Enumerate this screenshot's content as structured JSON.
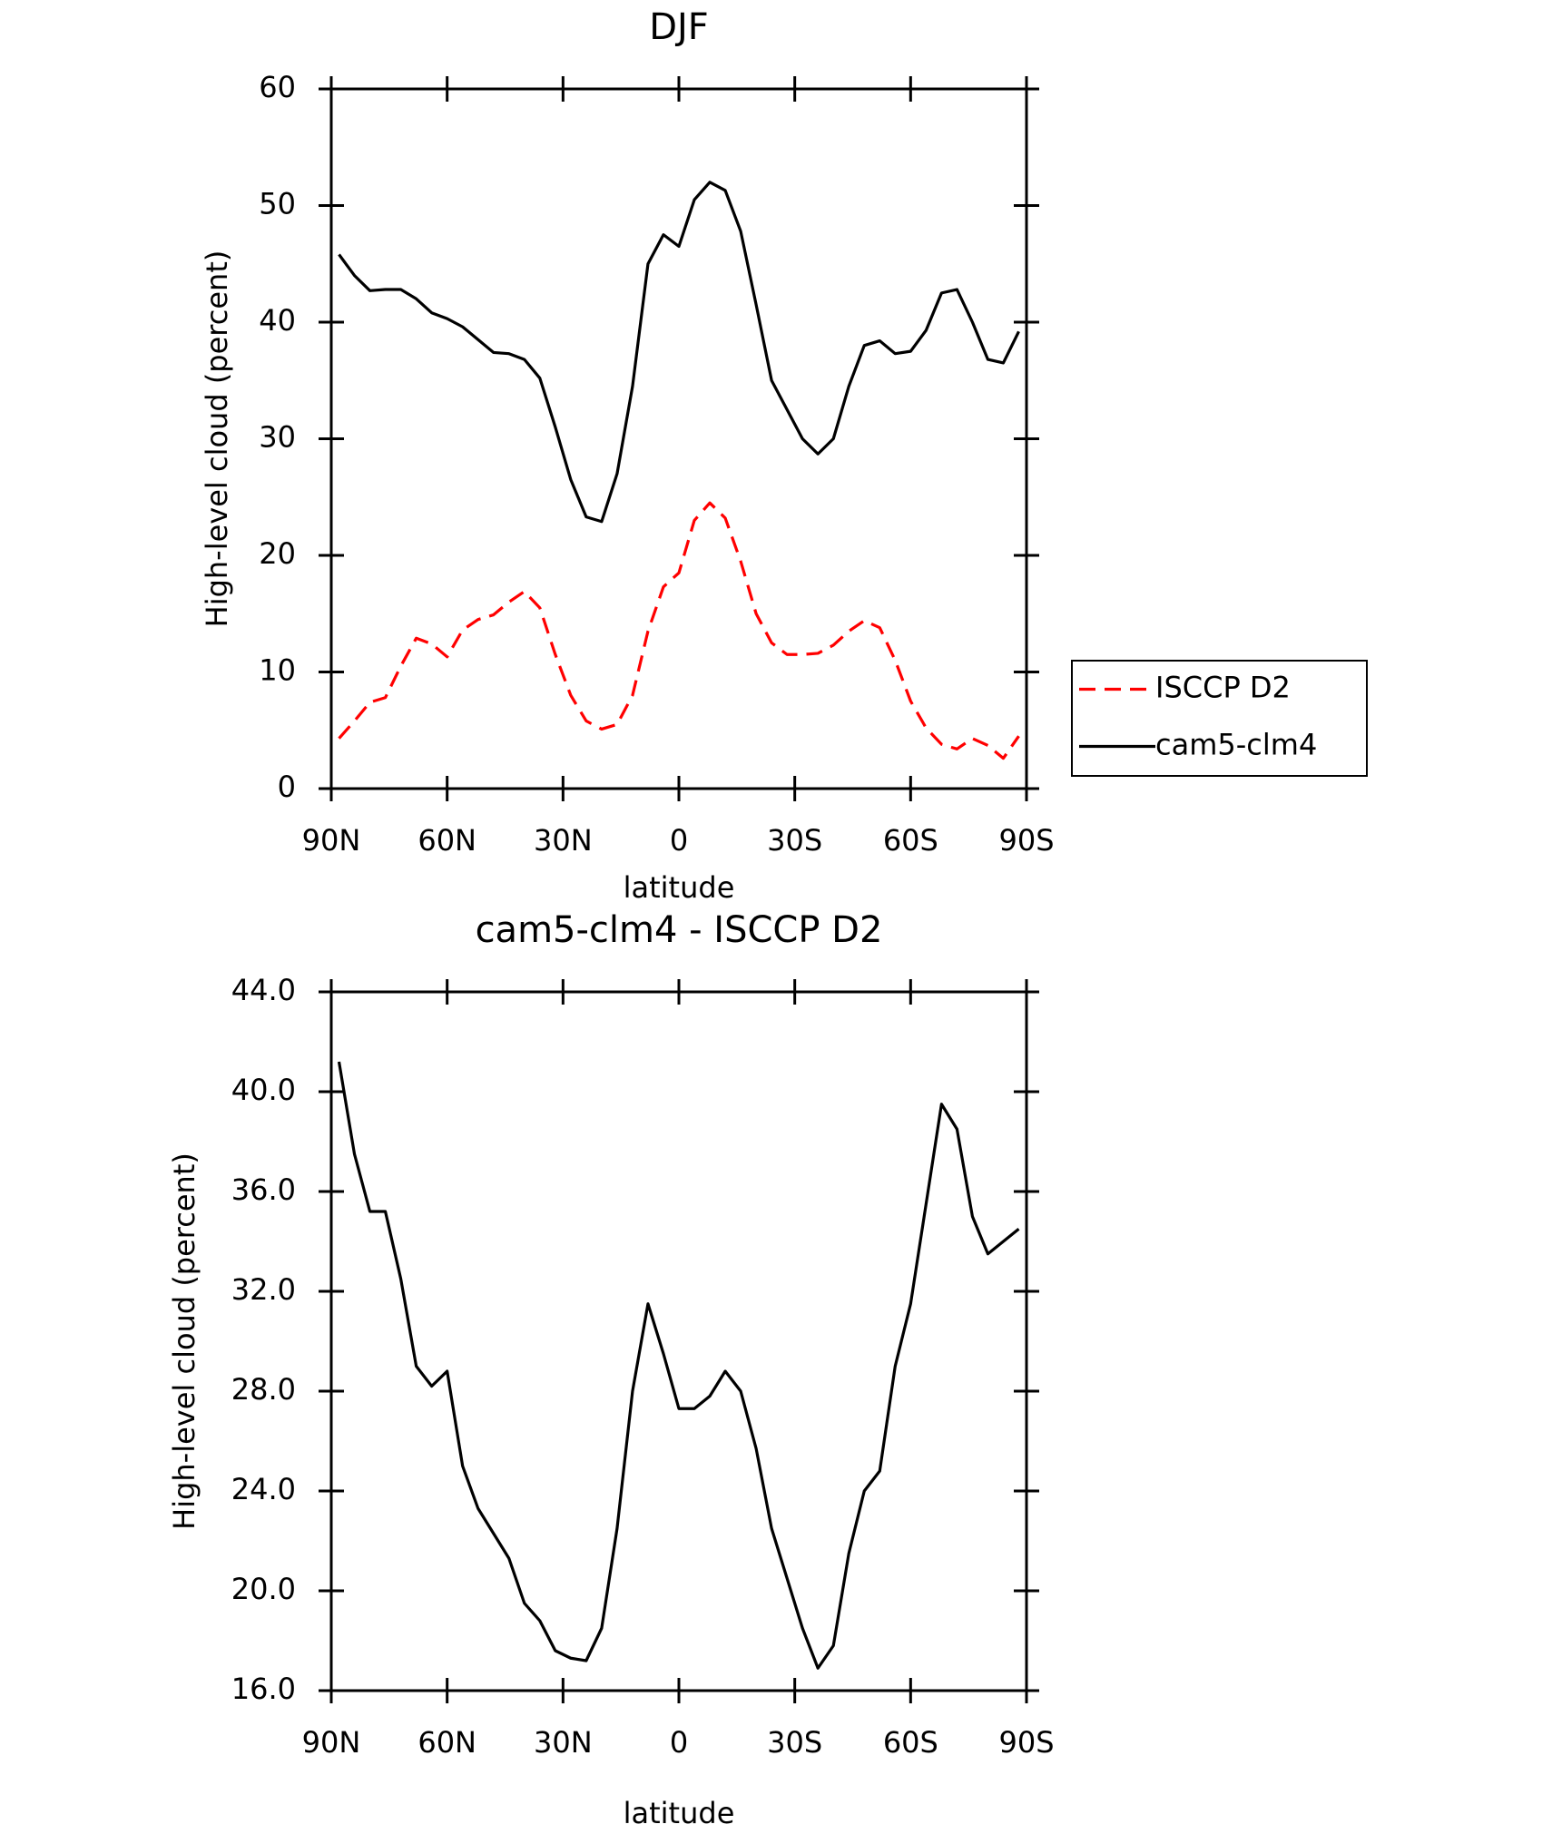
{
  "chart_data": [
    {
      "type": "line",
      "title": "DJF",
      "x_label": "latitude",
      "y_label": "High-level cloud (percent)",
      "x": [
        88,
        84,
        80,
        76,
        72,
        68,
        64,
        60,
        56,
        52,
        48,
        44,
        40,
        36,
        32,
        28,
        24,
        20,
        16,
        12,
        8,
        4,
        0,
        -4,
        -8,
        -12,
        -16,
        -20,
        -24,
        -28,
        -32,
        -36,
        -40,
        -44,
        -48,
        -52,
        -56,
        -60,
        -64,
        -68,
        -72,
        -76,
        -80,
        -84,
        -88
      ],
      "series": [
        {
          "name": "ISCCP D2",
          "color": "#ff0000",
          "dashed": true,
          "values": [
            4.3,
            5.8,
            7.4,
            7.8,
            10.5,
            12.9,
            12.4,
            11.3,
            13.6,
            14.5,
            14.9,
            16,
            16.9,
            15.5,
            11.5,
            8,
            5.8,
            5.1,
            5.5,
            8,
            13.5,
            17.3,
            18.5,
            23,
            24.5,
            23.2,
            19.5,
            15,
            12.5,
            11.5,
            11.5,
            11.6,
            12.3,
            13.5,
            14.4,
            13.8,
            11,
            7.5,
            5.2,
            3.8,
            3.4,
            4.3,
            3.7,
            2.6,
            4.5
          ]
        },
        {
          "name": "cam5-clm4",
          "color": "#000000",
          "dashed": false,
          "values": [
            45.8,
            44,
            42.7,
            42.8,
            42.8,
            42,
            40.8,
            40.3,
            39.6,
            38.5,
            37.4,
            37.3,
            36.8,
            35.2,
            31,
            26.5,
            23.3,
            22.9,
            27,
            34.5,
            45,
            47.5,
            46.5,
            50.5,
            52,
            51.3,
            47.8,
            41.5,
            35,
            32.5,
            30,
            28.7,
            30,
            34.5,
            38,
            38.4,
            37.3,
            37.5,
            39.3,
            42.5,
            42.8,
            40,
            36.8,
            36.5,
            39.2
          ]
        }
      ],
      "xlim": [
        90,
        -90
      ],
      "xticks": [
        {
          "value": 90,
          "label": "90N"
        },
        {
          "value": 60,
          "label": "60N"
        },
        {
          "value": 30,
          "label": "30N"
        },
        0,
        {
          "value": -30,
          "label": "30S"
        },
        {
          "value": -60,
          "label": "60S"
        },
        {
          "value": -90,
          "label": "90S"
        }
      ],
      "ylim": [
        0,
        60
      ],
      "yticks": [
        0,
        10,
        20,
        30,
        40,
        50,
        60
      ],
      "legend": "right"
    },
    {
      "type": "line",
      "title": "cam5-clm4 - ISCCP D2",
      "x_label": "latitude",
      "y_label": "High-level cloud (percent)",
      "x": [
        88,
        84,
        80,
        76,
        72,
        68,
        64,
        60,
        56,
        52,
        48,
        44,
        40,
        36,
        32,
        28,
        24,
        20,
        16,
        12,
        8,
        4,
        0,
        -4,
        -8,
        -12,
        -16,
        -20,
        -24,
        -28,
        -32,
        -36,
        -40,
        -44,
        -48,
        -52,
        -56,
        -60,
        -64,
        -68,
        -72,
        -76,
        -80,
        -84,
        -88
      ],
      "series": [
        {
          "color": "#000000",
          "dashed": false,
          "values": [
            41.2,
            37.5,
            35.2,
            35.2,
            32.5,
            29,
            28.2,
            28.8,
            25,
            23.3,
            22.3,
            21.3,
            19.5,
            18.8,
            17.6,
            17.3,
            17.2,
            18.5,
            22.5,
            28,
            31.5,
            29.5,
            27.3,
            27.3,
            27.8,
            28.8,
            28,
            25.7,
            22.5,
            20.5,
            18.5,
            16.9,
            17.8,
            21.5,
            24,
            24.8,
            29,
            31.5,
            35.5,
            39.5,
            38.5,
            35,
            33.5,
            34,
            34.5
          ]
        }
      ],
      "xlim": [
        90,
        -90
      ],
      "xticks": [
        {
          "value": 90,
          "label": "90N"
        },
        {
          "value": 60,
          "label": "60N"
        },
        {
          "value": 30,
          "label": "30N"
        },
        0,
        {
          "value": -30,
          "label": "30S"
        },
        {
          "value": -60,
          "label": "60S"
        },
        {
          "value": -90,
          "label": "90S"
        }
      ],
      "ylim": [
        16,
        44
      ],
      "yticks": [
        {
          "value": 16,
          "label": "16.0"
        },
        {
          "value": 20,
          "label": "20.0"
        },
        {
          "value": 24,
          "label": "24.0"
        },
        {
          "value": 28,
          "label": "28.0"
        },
        {
          "value": 32,
          "label": "32.0"
        },
        {
          "value": 36,
          "label": "36.0"
        },
        {
          "value": 40,
          "label": "40.0"
        },
        {
          "value": 44,
          "label": "44.0"
        }
      ]
    }
  ]
}
